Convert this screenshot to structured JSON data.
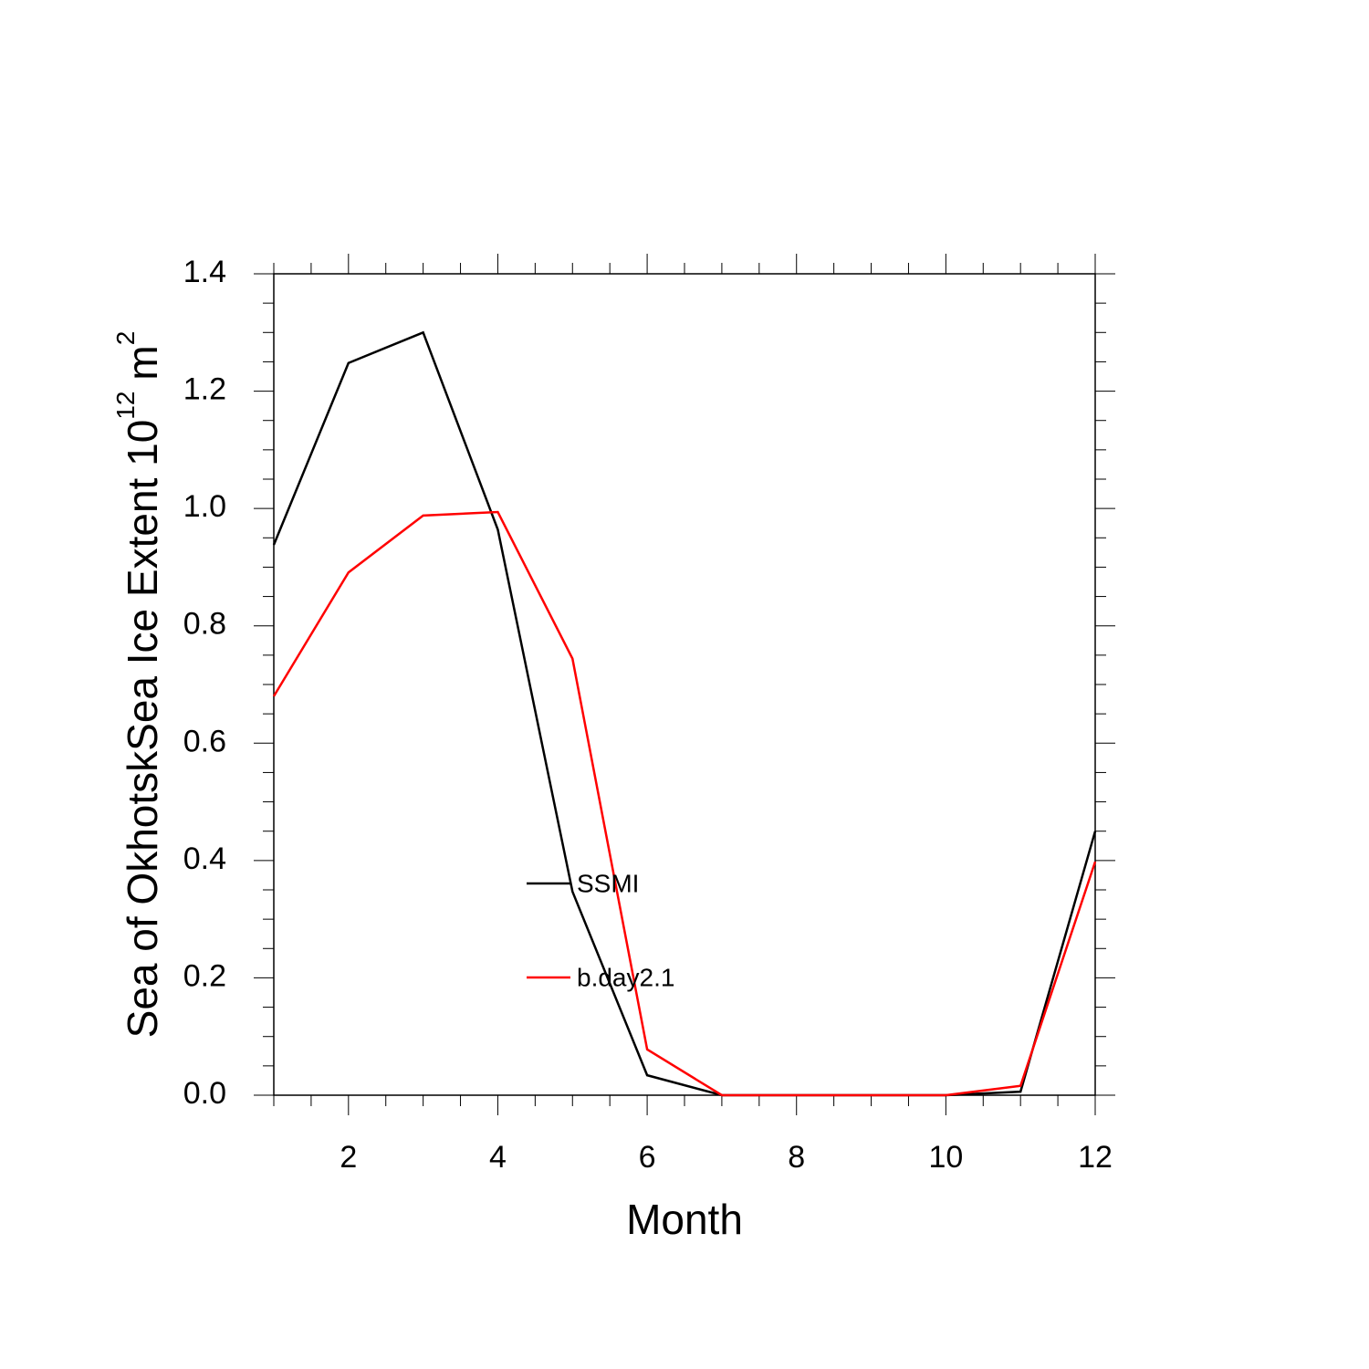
{
  "chart_data": {
    "type": "line",
    "x_label": "Month",
    "y_label": {
      "text": "Sea of OkhotskSea Ice Extent 10",
      "exponent": "12",
      "unit": "m",
      "unit_exponent": "2"
    },
    "x": [
      1,
      2,
      3,
      4,
      5,
      6,
      7,
      8,
      9,
      10,
      11,
      12
    ],
    "series": [
      {
        "name": "SSMI",
        "color": "#000000",
        "values": [
          0.938,
          1.248,
          1.3,
          0.964,
          0.347,
          0.034,
          0,
          0,
          0,
          0,
          0.006,
          0.45
        ]
      },
      {
        "name": "b.day2.1",
        "color": "#ff0000",
        "values": [
          0.68,
          0.891,
          0.988,
          0.994,
          0.744,
          0.078,
          0,
          0,
          0,
          0,
          0.016,
          0.398
        ]
      }
    ],
    "xlim": [
      1,
      12
    ],
    "xticks": [
      2,
      4,
      6,
      8,
      10,
      12
    ],
    "ylim": [
      0,
      1.4
    ],
    "yticks": [
      {
        "value": 0,
        "label": "0.0"
      },
      {
        "value": 0.2,
        "label": "0.2"
      },
      {
        "value": 0.4,
        "label": "0.4"
      },
      {
        "value": 0.6,
        "label": "0.6"
      },
      {
        "value": 0.8,
        "label": "0.8"
      },
      {
        "value": 1.0,
        "label": "1.0"
      },
      {
        "value": 1.2,
        "label": "1.2"
      },
      {
        "value": 1.4,
        "label": "1.4"
      }
    ],
    "grid": false,
    "legend_position": "center"
  }
}
